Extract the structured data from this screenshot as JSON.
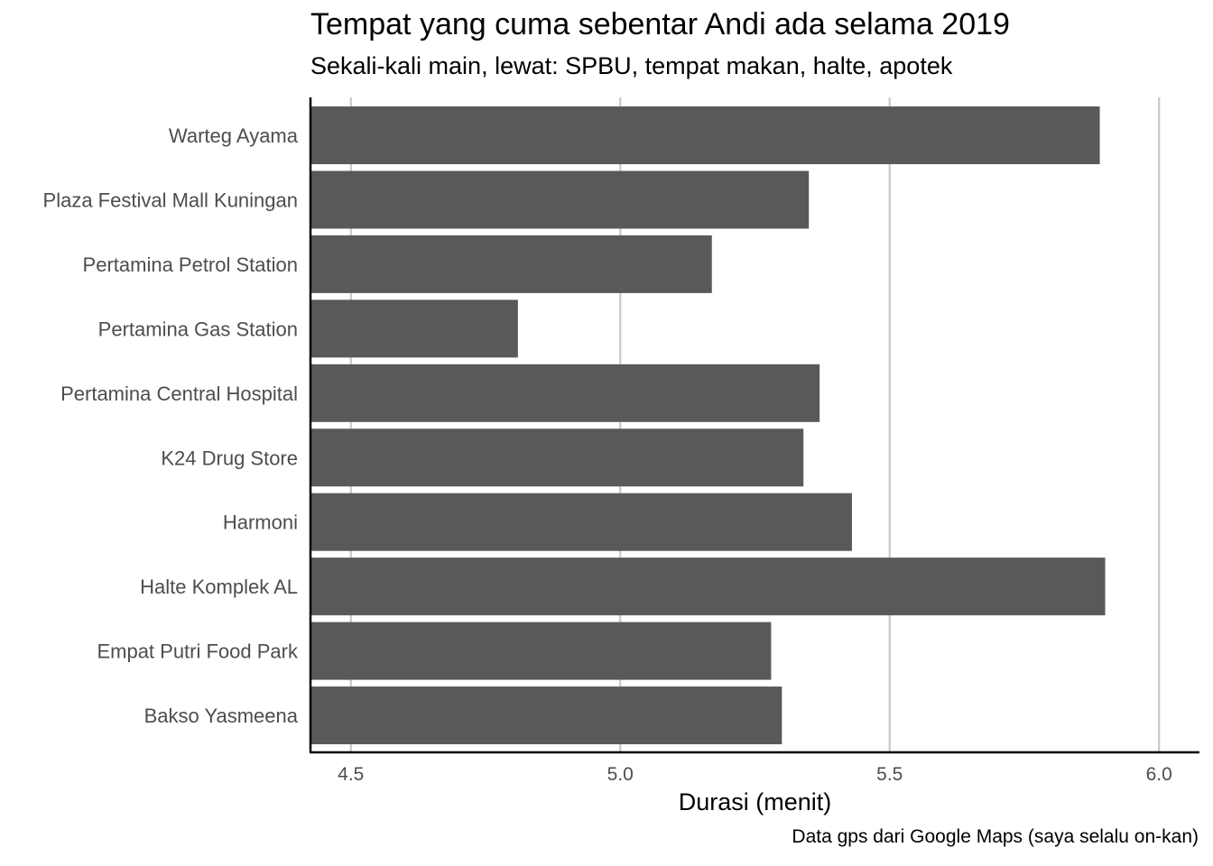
{
  "chart_data": {
    "type": "bar",
    "orientation": "horizontal",
    "title": "Tempat yang cuma sebentar Andi ada selama 2019",
    "subtitle": "Sekali-kali main, lewat: SPBU, tempat makan, halte, apotek",
    "caption": "Data gps dari Google Maps (saya selalu on-kan)",
    "xlabel": "Durasi (menit)",
    "ylabel": "",
    "categories": [
      "Warteg Ayama",
      "Plaza Festival Mall Kuningan",
      "Pertamina Petrol Station",
      "Pertamina Gas Station",
      "Pertamina Central Hospital",
      "K24 Drug Store",
      "Harmoni",
      "Halte Komplek AL",
      "Empat Putri Food Park",
      "Bakso Yasmeena"
    ],
    "values": [
      5.89,
      5.35,
      5.17,
      4.81,
      5.37,
      5.34,
      5.43,
      5.9,
      5.28,
      5.3
    ],
    "xlim": [
      4.425,
      6.075
    ],
    "x_ticks": [
      4.5,
      5.0,
      5.5,
      6.0
    ],
    "x_tick_labels": [
      "4.5",
      "5.0",
      "5.5",
      "6.0"
    ],
    "grid": "vertical-major",
    "bar_color": "#595959",
    "grid_color": "#c8c8c8",
    "axis_color": "#000000",
    "tick_label_color": "#4d4d4d"
  }
}
